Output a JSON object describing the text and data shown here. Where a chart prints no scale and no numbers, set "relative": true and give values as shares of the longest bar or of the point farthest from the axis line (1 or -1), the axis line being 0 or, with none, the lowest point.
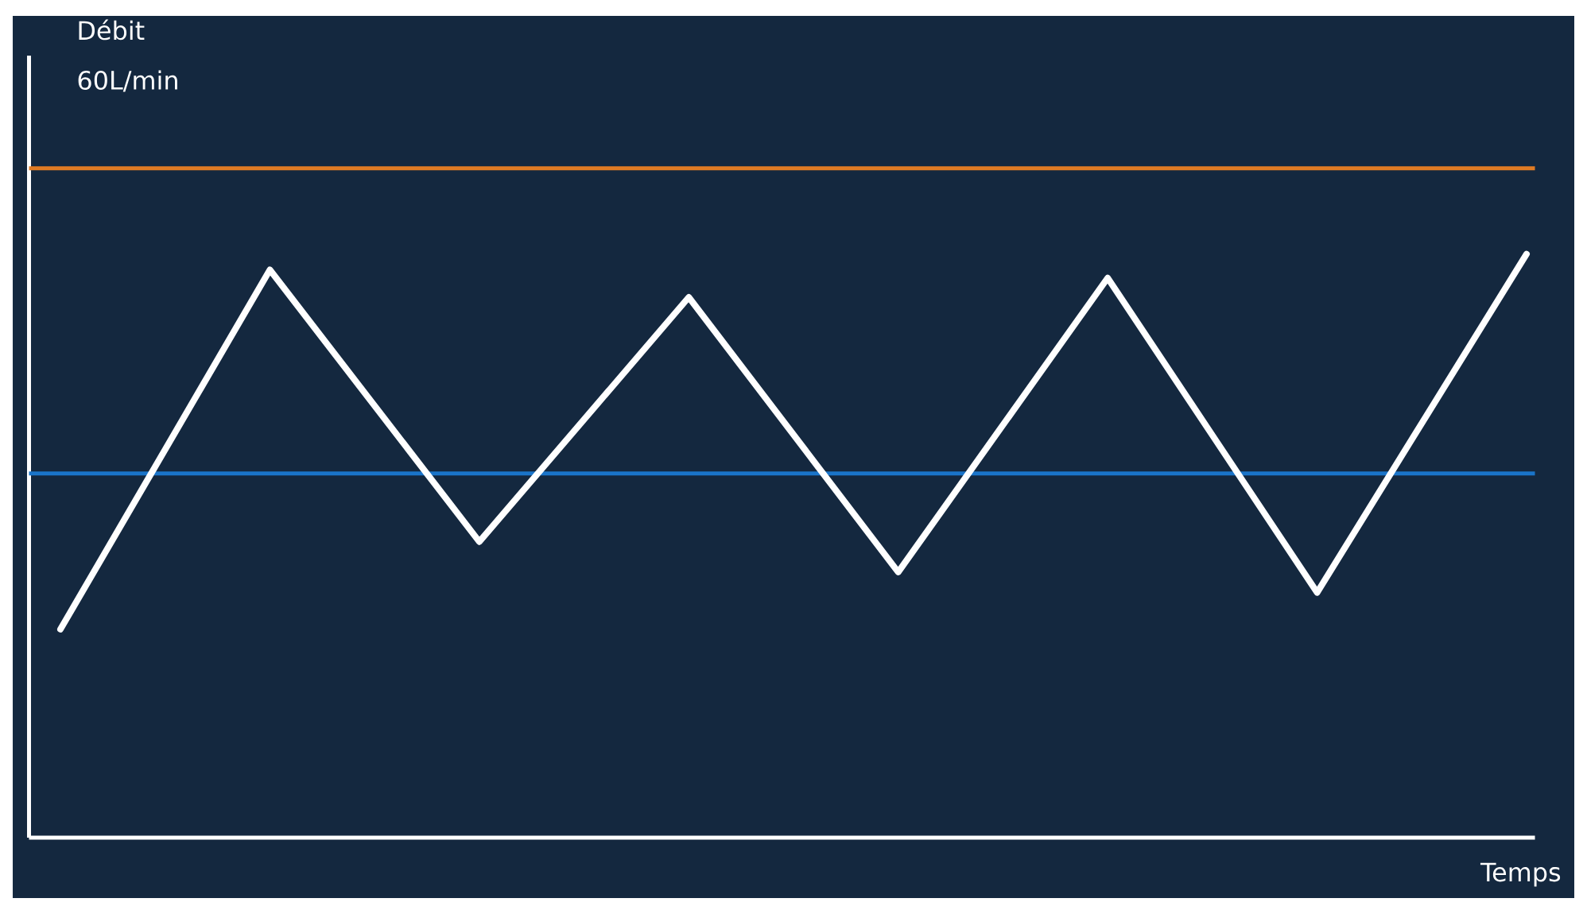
{
  "chart_data": {
    "type": "line",
    "relative": true,
    "xlabel": "Temps",
    "annotations": [
      "Débit",
      "60L/min"
    ],
    "categories": [
      null,
      null,
      null,
      null,
      null,
      null,
      null,
      null
    ],
    "series": [
      {
        "color": "#ffffff",
        "values": [
          0.357,
          0.973,
          0.507,
          0.926,
          0.455,
          0.959,
          0.42,
          1.0
        ]
      }
    ],
    "ref_lines": [
      {
        "axis": "y",
        "value": 1.147,
        "color": "#e07b24"
      },
      {
        "axis": "y",
        "value": 0.624,
        "color": "#1a74c9"
      }
    ]
  }
}
